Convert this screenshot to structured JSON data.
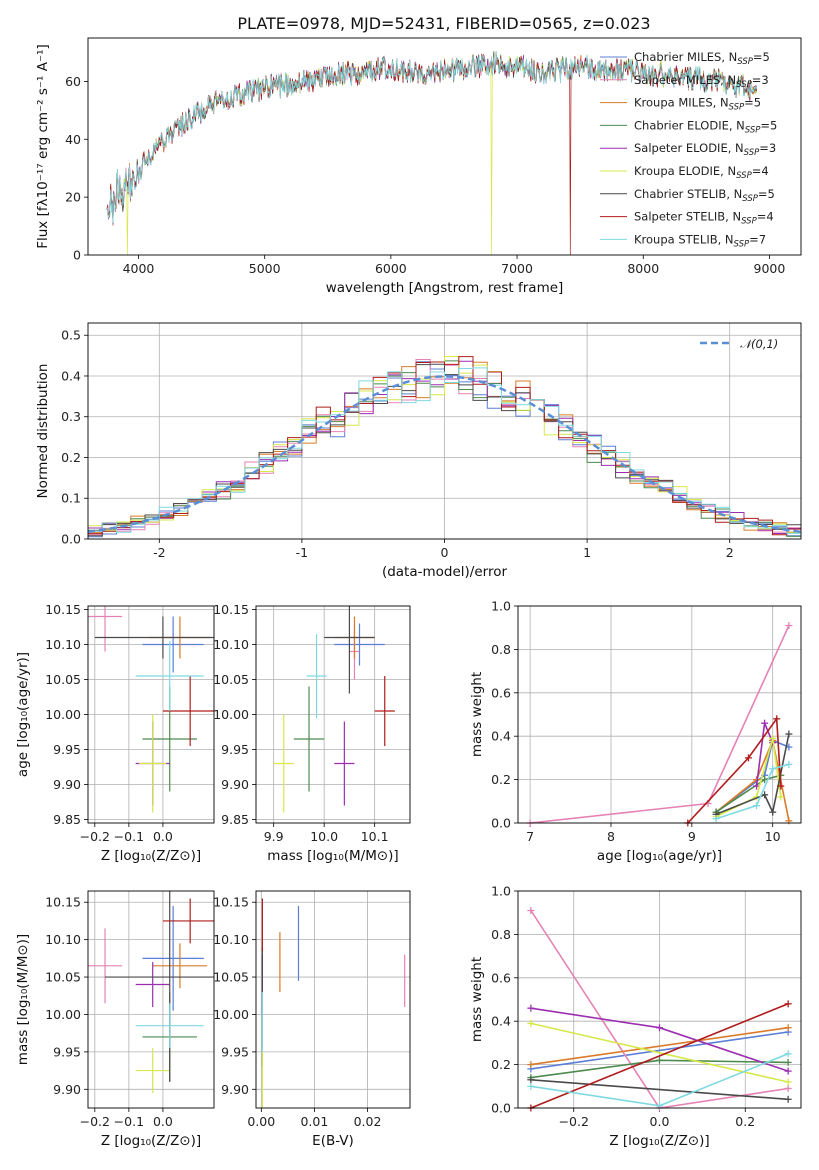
{
  "title": "PLATE=0978, MJD=52431, FIBERID=0565, z=0.023",
  "colors": {
    "Chabrier MILES": "#5b7fd6",
    "Salpeter MILES": "#e681b5",
    "Kroupa MILES": "#d97b2a",
    "Chabrier ELODIE": "#4e8a4e",
    "Salpeter ELODIE": "#9b2fb0",
    "Kroupa ELODIE": "#d6e84a",
    "Chabrier STELIB": "#4a4a4a",
    "Salpeter STELIB": "#b01c1c",
    "Kroupa STELIB": "#7fd9e0"
  },
  "chart_data": [
    {
      "id": "spectrum",
      "type": "line",
      "title": "PLATE=0978, MJD=52431, FIBERID=0565, z=0.023",
      "xlabel": "wavelength [Angstrom, rest frame]",
      "ylabel": "Flux [fλ10⁻¹⁷ erg cm⁻² s⁻¹ A⁻¹]",
      "xlim": [
        3600,
        9250
      ],
      "ylim": [
        0,
        75
      ],
      "xticks": [
        4000,
        5000,
        6000,
        7000,
        8000,
        9000
      ],
      "yticks": [
        0,
        20,
        40,
        60
      ],
      "legend": "top-right",
      "legend_entries": [
        "Chabrier MILES, N_SSP=5",
        "Salpeter MILES, N_SSP=3",
        "Kroupa MILES, N_SSP=5",
        "Chabrier ELODIE, N_SSP=5",
        "Salpeter ELODIE, N_SSP=3",
        "Kroupa ELODIE, N_SSP=4",
        "Chabrier STELIB, N_SSP=5",
        "Salpeter STELIB, N_SSP=4",
        "Kroupa STELIB, N_SSP=7"
      ],
      "continuum": {
        "x": [
          3750,
          3850,
          3950,
          4050,
          4150,
          4250,
          4400,
          4600,
          4800,
          5000,
          5200,
          5400,
          5600,
          5800,
          6000,
          6200,
          6500,
          6800,
          7000,
          7200,
          7500,
          7800,
          8200,
          8600,
          8900
        ],
        "y": [
          18,
          20,
          25,
          33,
          38,
          42,
          47,
          52,
          55,
          58,
          59,
          61,
          63,
          63,
          65,
          63,
          64,
          66,
          65,
          63,
          65,
          64,
          62,
          60,
          57
        ]
      },
      "dropouts": [
        {
          "series": "Kroupa ELODIE",
          "x": 3910
        },
        {
          "series": "Kroupa ELODIE",
          "x": 6800
        },
        {
          "series": "Salpeter STELIB",
          "x": 7420
        }
      ]
    },
    {
      "id": "residual-histogram",
      "type": "line",
      "xlabel": "(data-model)/error",
      "ylabel": "Normed distribution",
      "xlim": [
        -2.5,
        2.5
      ],
      "ylim": [
        0,
        0.53
      ],
      "xticks": [
        -2,
        -1,
        0,
        1,
        2
      ],
      "yticks": [
        0.0,
        0.1,
        0.2,
        0.3,
        0.4,
        0.5
      ],
      "grid": true,
      "legend": "top-right",
      "reference_curve": "𝒩(0,1)",
      "bin_width": 0.1
    },
    {
      "id": "age-vs-metallicity",
      "type": "scatter",
      "xlabel": "Z [log₁₀(Z/Z⊙)]",
      "ylabel": "age  [log₁₀(age/yr)]",
      "xlim": [
        -0.22,
        0.15
      ],
      "ylim": [
        9.845,
        10.155
      ],
      "xticks": [
        -0.2,
        -0.1,
        0.0
      ],
      "yticks": [
        9.85,
        9.9,
        9.95,
        10.0,
        10.05,
        10.1,
        10.15
      ],
      "grid": true,
      "points": [
        {
          "series": "Chabrier MILES",
          "x": 0.03,
          "y": 10.1,
          "xerr": 0.09,
          "yerr": 0.04
        },
        {
          "series": "Salpeter MILES",
          "x": -0.17,
          "y": 10.14,
          "xerr": 0.05,
          "yerr": 0.05
        },
        {
          "series": "Kroupa MILES",
          "x": 0.05,
          "y": 10.11,
          "xerr": 0.09,
          "yerr": 0.03
        },
        {
          "series": "Chabrier ELODIE",
          "x": 0.02,
          "y": 9.965,
          "xerr": 0.08,
          "yerr": 0.075
        },
        {
          "series": "Salpeter ELODIE",
          "x": -0.03,
          "y": 9.93,
          "xerr": 0.05,
          "yerr": 0.06
        },
        {
          "series": "Kroupa ELODIE",
          "x": -0.03,
          "y": 9.93,
          "xerr": 0.04,
          "yerr": 0.07
        },
        {
          "series": "Chabrier STELIB",
          "x": 0.0,
          "y": 10.11,
          "xerr": 0.2,
          "yerr": 0.03
        },
        {
          "series": "Salpeter STELIB",
          "x": 0.08,
          "y": 10.005,
          "xerr": 0.08,
          "yerr": 0.05
        },
        {
          "series": "Kroupa STELIB",
          "x": 0.02,
          "y": 10.055,
          "xerr": 0.1,
          "yerr": 0.05
        }
      ]
    },
    {
      "id": "age-vs-mass",
      "type": "scatter",
      "xlabel": "mass [log₁₀(M/M⊙)]",
      "xlim": [
        9.865,
        10.17
      ],
      "ylim": [
        9.845,
        10.155
      ],
      "xticks": [
        9.9,
        10.0,
        10.1
      ],
      "yticks": [
        9.85,
        9.9,
        9.95,
        10.0,
        10.05,
        10.1,
        10.15
      ],
      "grid": true,
      "points": [
        {
          "series": "Chabrier MILES",
          "x": 10.07,
          "y": 10.1,
          "xerr": 0.05,
          "yerr": 0.03
        },
        {
          "series": "Salpeter MILES",
          "x": 10.06,
          "y": 10.09,
          "xerr": 0.01,
          "yerr": 0.04
        },
        {
          "series": "Kroupa MILES",
          "x": 10.06,
          "y": 10.11,
          "xerr": 0.04,
          "yerr": 0.03
        },
        {
          "series": "Chabrier ELODIE",
          "x": 9.97,
          "y": 9.965,
          "xerr": 0.03,
          "yerr": 0.075
        },
        {
          "series": "Salpeter ELODIE",
          "x": 10.04,
          "y": 9.93,
          "xerr": 0.02,
          "yerr": 0.06
        },
        {
          "series": "Kroupa ELODIE",
          "x": 9.92,
          "y": 9.93,
          "xerr": 0.02,
          "yerr": 0.07
        },
        {
          "series": "Chabrier STELIB",
          "x": 10.05,
          "y": 10.11,
          "xerr": 0.05,
          "yerr": 0.08
        },
        {
          "series": "Salpeter STELIB",
          "x": 10.12,
          "y": 10.005,
          "xerr": 0.02,
          "yerr": 0.05
        },
        {
          "series": "Kroupa STELIB",
          "x": 9.985,
          "y": 10.055,
          "xerr": 0.02,
          "yerr": 0.06
        }
      ]
    },
    {
      "id": "mass-weight-vs-age",
      "type": "line",
      "xlabel": "age  [log₁₀(age/yr)]",
      "ylabel": "mass weight",
      "xlim": [
        6.85,
        10.35
      ],
      "ylim": [
        0,
        1
      ],
      "xticks": [
        7,
        8,
        9,
        10
      ],
      "yticks": [
        0.0,
        0.2,
        0.4,
        0.6,
        0.8,
        1.0
      ],
      "grid": true,
      "series": [
        {
          "series": "Chabrier MILES",
          "x": [
            9.3,
            9.9,
            10.0,
            10.2
          ],
          "y": [
            0.05,
            0.22,
            0.38,
            0.35
          ]
        },
        {
          "series": "Salpeter MILES",
          "x": [
            7.0,
            9.2,
            10.2
          ],
          "y": [
            0.0,
            0.09,
            0.91
          ]
        },
        {
          "series": "Kroupa MILES",
          "x": [
            9.3,
            9.8,
            10.0,
            10.2
          ],
          "y": [
            0.05,
            0.2,
            0.38,
            0.01
          ]
        },
        {
          "series": "Chabrier ELODIE",
          "x": [
            9.3,
            9.9,
            10.1
          ],
          "y": [
            0.05,
            0.2,
            0.22
          ]
        },
        {
          "series": "Salpeter ELODIE",
          "x": [
            9.8,
            9.9,
            10.0
          ],
          "y": [
            0.17,
            0.46,
            0.37
          ]
        },
        {
          "series": "Kroupa ELODIE",
          "x": [
            9.3,
            9.8,
            10.0,
            10.1
          ],
          "y": [
            0.03,
            0.12,
            0.39,
            0.12
          ]
        },
        {
          "series": "Chabrier STELIB",
          "x": [
            9.3,
            9.9,
            10.0,
            10.2
          ],
          "y": [
            0.04,
            0.13,
            0.05,
            0.41
          ]
        },
        {
          "series": "Salpeter STELIB",
          "x": [
            8.95,
            9.7,
            10.05,
            10.1
          ],
          "y": [
            0.0,
            0.3,
            0.48,
            0.17
          ]
        },
        {
          "series": "Kroupa STELIB",
          "x": [
            9.3,
            9.8,
            10.0,
            10.2
          ],
          "y": [
            0.02,
            0.08,
            0.25,
            0.27
          ]
        }
      ]
    },
    {
      "id": "mass-vs-metallicity",
      "type": "scatter",
      "xlabel": "Z [log₁₀(Z/Z⊙)]",
      "ylabel": "mass [log₁₀(M/M⊙)]",
      "xlim": [
        -0.22,
        0.15
      ],
      "ylim": [
        9.875,
        10.165
      ],
      "xticks": [
        -0.2,
        -0.1,
        0.0
      ],
      "yticks": [
        9.9,
        9.95,
        10.0,
        10.05,
        10.1,
        10.15
      ],
      "grid": true,
      "points": [
        {
          "series": "Chabrier MILES",
          "x": 0.03,
          "y": 10.075,
          "xerr": 0.09,
          "yerr": 0.07
        },
        {
          "series": "Salpeter MILES",
          "x": -0.17,
          "y": 10.065,
          "xerr": 0.05,
          "yerr": 0.05
        },
        {
          "series": "Kroupa MILES",
          "x": 0.05,
          "y": 10.065,
          "xerr": 0.08,
          "yerr": 0.03
        },
        {
          "series": "Chabrier ELODIE",
          "x": 0.02,
          "y": 9.97,
          "xerr": 0.08,
          "yerr": 0.06
        },
        {
          "series": "Salpeter ELODIE",
          "x": -0.03,
          "y": 10.04,
          "xerr": 0.05,
          "yerr": 0.03
        },
        {
          "series": "Kroupa ELODIE",
          "x": -0.03,
          "y": 9.925,
          "xerr": 0.05,
          "yerr": 0.03
        },
        {
          "series": "Chabrier STELIB",
          "x": 0.02,
          "y": 10.05,
          "xerr": 0.19,
          "yerr": 0.14
        },
        {
          "series": "Salpeter STELIB",
          "x": 0.08,
          "y": 10.125,
          "xerr": 0.08,
          "yerr": 0.03
        },
        {
          "series": "Kroupa STELIB",
          "x": 0.02,
          "y": 9.985,
          "xerr": 0.1,
          "yerr": 0.03
        }
      ]
    },
    {
      "id": "mass-vs-extinction",
      "type": "scatter",
      "xlabel": "E(B-V)",
      "xlim": [
        -0.001,
        0.028
      ],
      "ylim": [
        9.875,
        10.165
      ],
      "xticks": [
        0.0,
        0.01,
        0.02
      ],
      "yticks": [
        9.9,
        9.95,
        10.0,
        10.05,
        10.1,
        10.15
      ],
      "grid": true,
      "points": [
        {
          "series": "Chabrier MILES",
          "x": 0.007,
          "y": 10.095,
          "xerr": 0,
          "yerr": 0.05
        },
        {
          "series": "Salpeter MILES",
          "x": 0.027,
          "y": 10.045,
          "xerr": 0,
          "yerr": 0.035
        },
        {
          "series": "Kroupa MILES",
          "x": 0.0035,
          "y": 10.07,
          "xerr": 0,
          "yerr": 0.04
        },
        {
          "series": "Chabrier ELODIE",
          "x": 0.0002,
          "y": 9.98,
          "xerr": 0,
          "yerr": 0.05
        },
        {
          "series": "Salpeter ELODIE",
          "x": 0.0002,
          "y": 10.04,
          "xerr": 0,
          "yerr": 0.04
        },
        {
          "series": "Kroupa ELODIE",
          "x": 0.0002,
          "y": 9.915,
          "xerr": 0,
          "yerr": 0.04
        },
        {
          "series": "Chabrier STELIB",
          "x": 0.0002,
          "y": 10.06,
          "xerr": 0,
          "yerr": 0.03
        },
        {
          "series": "Salpeter STELIB",
          "x": 0.0002,
          "y": 10.12,
          "xerr": 0,
          "yerr": 0.035
        },
        {
          "series": "Kroupa STELIB",
          "x": 0.0002,
          "y": 9.99,
          "xerr": 0,
          "yerr": 0.04
        }
      ]
    },
    {
      "id": "mass-weight-vs-metallicity",
      "type": "line",
      "xlabel": "Z [log₁₀(Z/Z⊙)]",
      "ylabel": "mass weight",
      "xlim": [
        -0.33,
        0.33
      ],
      "ylim": [
        0,
        1
      ],
      "xticks": [
        -0.2,
        0.0,
        0.2
      ],
      "yticks": [
        0.0,
        0.2,
        0.4,
        0.6,
        0.8,
        1.0
      ],
      "grid": true,
      "series": [
        {
          "series": "Chabrier MILES",
          "x": [
            -0.3,
            0.3
          ],
          "y": [
            0.18,
            0.35
          ]
        },
        {
          "series": "Salpeter MILES",
          "x": [
            -0.3,
            0.0,
            0.3
          ],
          "y": [
            0.91,
            0.0,
            0.09
          ]
        },
        {
          "series": "Kroupa MILES",
          "x": [
            -0.3,
            0.3
          ],
          "y": [
            0.2,
            0.37
          ]
        },
        {
          "series": "Chabrier ELODIE",
          "x": [
            -0.3,
            0.0,
            0.3
          ],
          "y": [
            0.14,
            0.22,
            0.21
          ]
        },
        {
          "series": "Salpeter ELODIE",
          "x": [
            -0.3,
            0.0,
            0.3
          ],
          "y": [
            0.46,
            0.37,
            0.17
          ]
        },
        {
          "series": "Kroupa ELODIE",
          "x": [
            -0.3,
            0.3
          ],
          "y": [
            0.39,
            0.12
          ]
        },
        {
          "series": "Chabrier STELIB",
          "x": [
            -0.3,
            0.3
          ],
          "y": [
            0.13,
            0.04
          ]
        },
        {
          "series": "Salpeter STELIB",
          "x": [
            -0.3,
            0.3
          ],
          "y": [
            0.0,
            0.48
          ]
        },
        {
          "series": "Kroupa STELIB",
          "x": [
            -0.3,
            0.0,
            0.3
          ],
          "y": [
            0.1,
            0.01,
            0.25
          ]
        }
      ]
    }
  ]
}
